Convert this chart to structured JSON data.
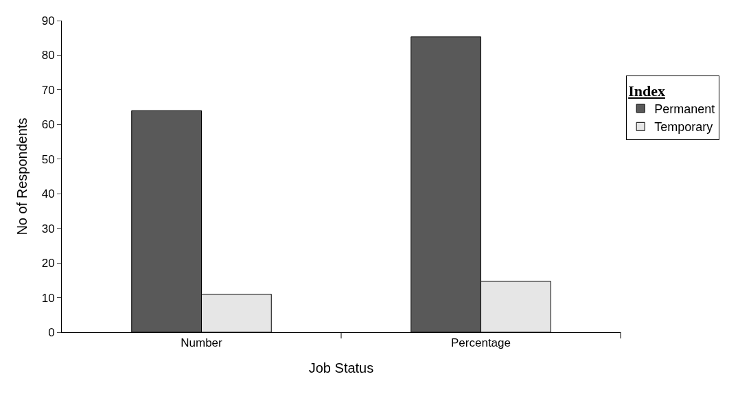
{
  "chart_data": {
    "type": "bar",
    "xlabel": "Job Status",
    "ylabel": "No of Respondents",
    "legend_title": "Index",
    "categories": [
      "Number",
      "Percentage"
    ],
    "series": [
      {
        "name": "Permanent",
        "color": "#595959",
        "values": [
          64,
          85.3
        ]
      },
      {
        "name": "Temporary",
        "color": "#e6e6e6",
        "values": [
          11,
          14.7
        ]
      }
    ],
    "ylim": [
      0,
      90
    ],
    "yticks": [
      0,
      10,
      20,
      30,
      40,
      50,
      60,
      70,
      80,
      90
    ],
    "grid": false,
    "legend": "right"
  }
}
